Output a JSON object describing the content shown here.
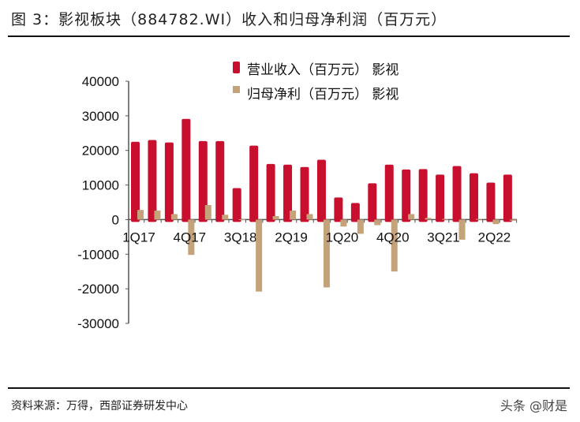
{
  "title": "图 3：影视板块（884782.WI）收入和归母净利润（百万元）",
  "source": "资料来源：万得，西部证券研发中心",
  "watermark": "头条 @财是",
  "chart_data": {
    "type": "bar",
    "title": "",
    "xlabel": "",
    "ylabel": "",
    "ylim": [
      -30000,
      40000
    ],
    "yticks": [
      "40000",
      "30000",
      "20000",
      "10000",
      "0",
      "-10000",
      "-20000",
      "-30000"
    ],
    "categories": [
      "1Q17",
      "2Q17",
      "3Q17",
      "4Q17",
      "1Q18",
      "2Q18",
      "3Q18",
      "4Q18",
      "1Q19",
      "2Q19",
      "3Q19",
      "4Q19",
      "1Q20",
      "2Q20",
      "3Q20",
      "4Q20",
      "1Q21",
      "2Q21",
      "3Q21",
      "4Q21",
      "1Q22",
      "2Q22",
      "3Q22"
    ],
    "xtick_labels": [
      "1Q17",
      "4Q17",
      "3Q18",
      "2Q19",
      "1Q20",
      "4Q20",
      "3Q21",
      "2Q22"
    ],
    "legend": "top-center",
    "grid": false,
    "series": [
      {
        "name": "营业收入（百万元） 影视",
        "color": "#c8102e",
        "values": [
          22500,
          23000,
          22300,
          29100,
          22700,
          22700,
          9100,
          21400,
          16100,
          15900,
          15200,
          17300,
          6400,
          4800,
          10500,
          15900,
          14500,
          14600,
          13000,
          15500,
          13400,
          10700,
          13000
        ]
      },
      {
        "name": "归母净利（百万元） 影视",
        "color": "#c4a27a",
        "values": [
          2800,
          2600,
          1600,
          -10200,
          4200,
          1400,
          100,
          -20800,
          1000,
          2600,
          1600,
          -19600,
          -2000,
          -4100,
          -1600,
          -15000,
          1600,
          500,
          200,
          -5800,
          200,
          -1300,
          -300
        ]
      }
    ]
  }
}
